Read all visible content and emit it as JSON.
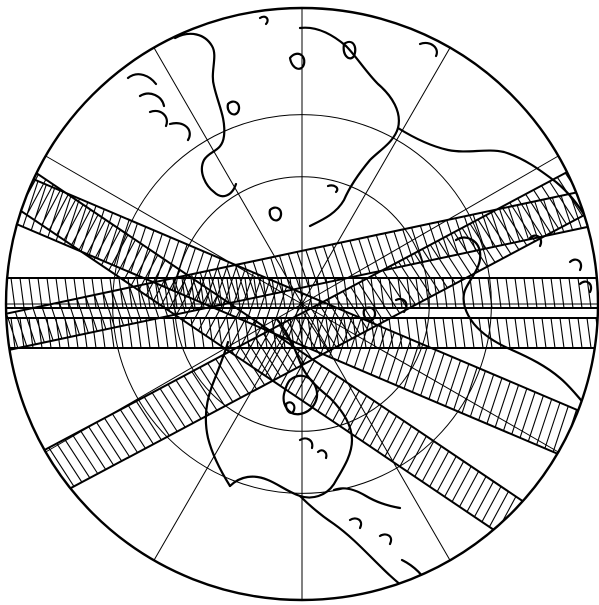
{
  "figure": {
    "type": "polar-projection-map",
    "colors": {
      "ink": "#000000",
      "background": "#ffffff"
    },
    "graticule": {
      "meridian_count": 12,
      "parallel_rings": 3
    },
    "swath_bands": {
      "count": 6,
      "fill": "hatched",
      "hatch_spacing": "dense"
    },
    "features": [
      "coastlines-north-america",
      "coastlines-central-america",
      "coastlines-greenland",
      "coastlines-arctic-islands",
      "coastlines-eurasia",
      "coastlines-africa-north"
    ]
  }
}
